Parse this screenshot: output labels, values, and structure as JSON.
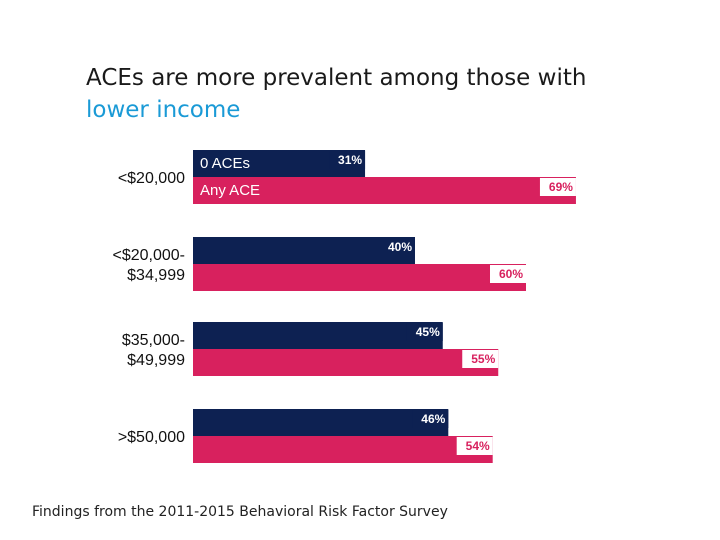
{
  "title": {
    "line1": "ACEs are more prevalent among those with",
    "line2": "lower income"
  },
  "footer": "Findings from the 2011-2015 Behavioral Risk Factor Survey",
  "colors": {
    "zero_aces": "#0d2152",
    "any_ace": "#d8215e",
    "title_accent": "#1a9ad6"
  },
  "chart_data": {
    "type": "bar",
    "orientation": "horizontal",
    "categories": [
      "<$20,000",
      "<$20,000-\n$34,999",
      "$35,000-\n$49,999",
      ">$50,000"
    ],
    "series": [
      {
        "name": "0 ACEs",
        "values": [
          31,
          40,
          45,
          46
        ]
      },
      {
        "name": "Any ACE",
        "values": [
          69,
          60,
          55,
          54
        ]
      }
    ],
    "value_suffix": "%",
    "xlim": [
      0,
      100
    ],
    "grid": false,
    "legend": "inside-top-bars"
  }
}
